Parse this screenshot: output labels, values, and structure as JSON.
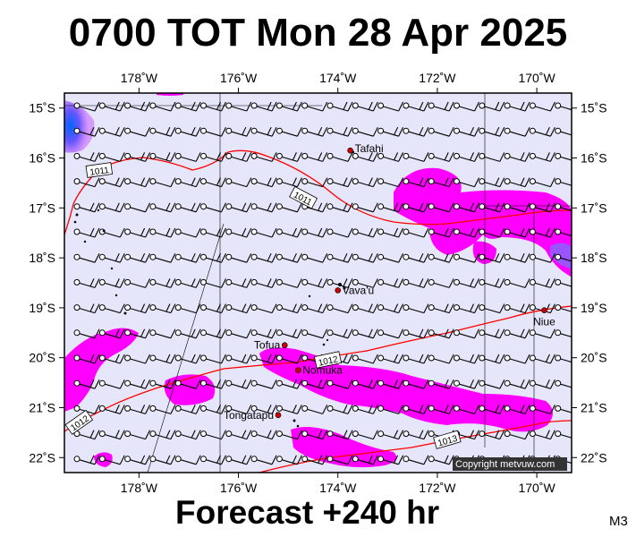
{
  "title": "0700 TOT Mon 28 Apr 2025",
  "footer": "Forecast +240 hr",
  "model_label": "M3",
  "copyright": "Copyright metvuw.com",
  "map": {
    "lon_range": [
      -179.5,
      -169.3
    ],
    "lat_range": [
      -22.3,
      -14.7
    ],
    "lon_ticks": [
      {
        "value": -178,
        "label": "178˚W"
      },
      {
        "value": -176,
        "label": "176˚W"
      },
      {
        "value": -174,
        "label": "174˚W"
      },
      {
        "value": -172,
        "label": "172˚W"
      },
      {
        "value": -170,
        "label": "170˚W"
      }
    ],
    "lat_ticks": [
      {
        "value": -15,
        "label": "15˚S"
      },
      {
        "value": -16,
        "label": "16˚S"
      },
      {
        "value": -17,
        "label": "17˚S"
      },
      {
        "value": -18,
        "label": "18˚S"
      },
      {
        "value": -19,
        "label": "19˚S"
      },
      {
        "value": -20,
        "label": "20˚S"
      },
      {
        "value": -21,
        "label": "21˚S"
      },
      {
        "value": -22,
        "label": "22˚S"
      }
    ],
    "places": [
      {
        "name": "Tafahi",
        "lon": -173.75,
        "lat": -15.85
      },
      {
        "name": "Vava'u",
        "lon": -174.0,
        "lat": -18.65
      },
      {
        "name": "Niue",
        "lon": -169.85,
        "lat": -19.05
      },
      {
        "name": "Tofua",
        "lon": -175.07,
        "lat": -19.75
      },
      {
        "name": "Nomuka",
        "lon": -174.8,
        "lat": -20.25
      },
      {
        "name": "Tongatapu",
        "lon": -175.2,
        "lat": -21.15
      }
    ],
    "isobars": [
      {
        "value": "1011",
        "label_pos": [
          -178.8,
          -16.25
        ],
        "rotate": -8
      },
      {
        "value": "1011",
        "label_pos": [
          -174.7,
          -16.8
        ],
        "rotate": 28
      },
      {
        "value": "1012",
        "label_pos": [
          -174.2,
          -20.05
        ],
        "rotate": -12
      },
      {
        "value": "1012",
        "label_pos": [
          -179.2,
          -21.3
        ],
        "rotate": -35
      },
      {
        "value": "1013",
        "label_pos": [
          -171.8,
          -21.65
        ],
        "rotate": -16
      }
    ],
    "colors": {
      "background": "#e6e6fa",
      "rain_light": "#ff00ff",
      "rain_mid": "#cc33ff",
      "rain_heavy": "#3355ff",
      "isobar": "#ff0000",
      "place_marker": "#cc0000"
    }
  }
}
